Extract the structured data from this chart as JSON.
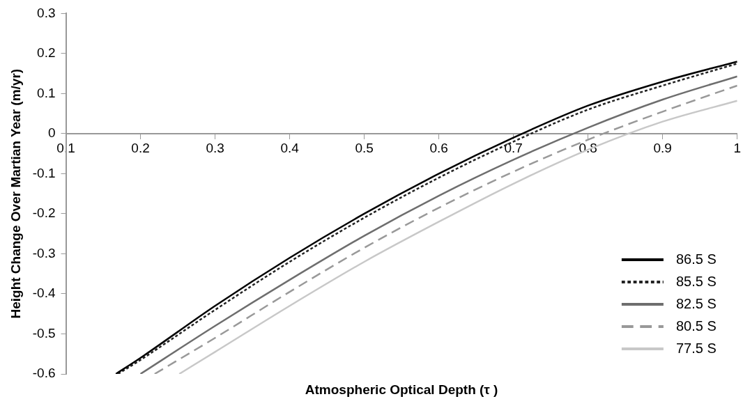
{
  "chart_data": {
    "type": "line",
    "xlabel": "Atmospheric Optical Depth (τ )",
    "ylabel": "Height Change Over Martian Year (m/yr)",
    "xlim": [
      0.1,
      1
    ],
    "xticks": [
      0.1,
      0.2,
      0.3,
      0.4,
      0.5,
      0.6,
      0.7,
      0.8,
      0.9,
      1
    ],
    "ylim": [
      -0.6,
      0.3
    ],
    "yticks": [
      -0.6,
      -0.5,
      -0.4,
      -0.3,
      -0.2,
      -0.1,
      0,
      0.1,
      0.2,
      0.3
    ],
    "grid": false,
    "legend": "bottom right",
    "marker": "none",
    "series": [
      {
        "name": "86.5 S",
        "color": "#000000",
        "line_style": "solid",
        "x": [
          0.167,
          0.2,
          0.3,
          0.4,
          0.5,
          0.6,
          0.7,
          0.8,
          0.9,
          1
        ],
        "values": [
          -0.6,
          -0.56,
          -0.43,
          -0.31,
          -0.2,
          -0.1,
          -0.01,
          0.07,
          0.13,
          0.18
        ]
      },
      {
        "name": "85.5 S",
        "color": "#222222",
        "line_style": "dotted",
        "x": [
          0.17,
          0.2,
          0.3,
          0.4,
          0.5,
          0.6,
          0.7,
          0.8,
          0.9,
          1
        ],
        "values": [
          -0.6,
          -0.565,
          -0.44,
          -0.32,
          -0.21,
          -0.11,
          -0.02,
          0.06,
          0.12,
          0.175
        ]
      },
      {
        "name": "82.5 S",
        "color": "#6e6e6e",
        "line_style": "solid",
        "x": [
          0.2,
          0.3,
          0.4,
          0.5,
          0.6,
          0.7,
          0.8,
          0.9,
          1
        ],
        "values": [
          -0.6,
          -0.48,
          -0.365,
          -0.255,
          -0.155,
          -0.065,
          0.015,
          0.085,
          0.143
        ]
      },
      {
        "name": "80.5 S",
        "color": "#999999",
        "line_style": "dashed",
        "x": [
          0.219,
          0.3,
          0.4,
          0.5,
          0.6,
          0.7,
          0.8,
          0.9,
          1
        ],
        "values": [
          -0.6,
          -0.51,
          -0.395,
          -0.285,
          -0.185,
          -0.095,
          -0.015,
          0.055,
          0.12
        ]
      },
      {
        "name": "77.5 S",
        "color": "#c8c8c8",
        "line_style": "solid",
        "x": [
          0.252,
          0.3,
          0.4,
          0.5,
          0.6,
          0.7,
          0.8,
          0.9,
          1
        ],
        "values": [
          -0.6,
          -0.545,
          -0.43,
          -0.32,
          -0.22,
          -0.125,
          -0.04,
          0.03,
          0.082
        ]
      }
    ]
  }
}
